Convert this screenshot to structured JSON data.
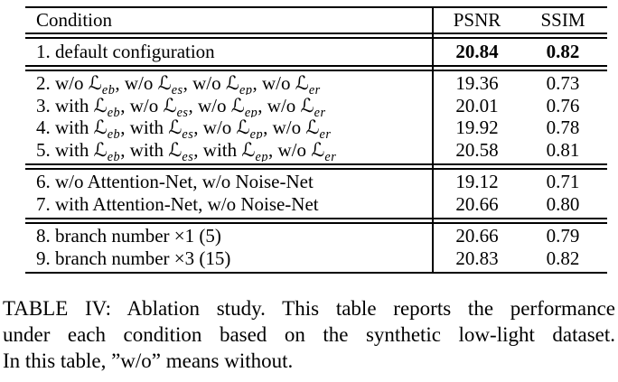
{
  "table": {
    "columns": {
      "condition": "Condition",
      "psnr": "PSNR",
      "ssim": "SSIM"
    },
    "groups": [
      {
        "rows": [
          {
            "condition": [
              {
                "text": "1. default configuration"
              }
            ],
            "psnr": "20.84",
            "ssim": "0.82",
            "bold": true
          }
        ]
      },
      {
        "rows": [
          {
            "condition": [
              {
                "text": "2. w/o "
              },
              {
                "math": "ℒ",
                "sub": "eb"
              },
              {
                "text": ", w/o "
              },
              {
                "math": "ℒ",
                "sub": "es"
              },
              {
                "text": ", w/o "
              },
              {
                "math": "ℒ",
                "sub": "ep"
              },
              {
                "text": ", w/o "
              },
              {
                "math": "ℒ",
                "sub": "er"
              }
            ],
            "psnr": "19.36",
            "ssim": "0.73",
            "bold": false
          },
          {
            "condition": [
              {
                "text": "3. with "
              },
              {
                "math": "ℒ",
                "sub": "eb"
              },
              {
                "text": ", w/o "
              },
              {
                "math": "ℒ",
                "sub": "es"
              },
              {
                "text": ", w/o "
              },
              {
                "math": "ℒ",
                "sub": "ep"
              },
              {
                "text": ", w/o "
              },
              {
                "math": "ℒ",
                "sub": "er"
              }
            ],
            "psnr": "20.01",
            "ssim": "0.76",
            "bold": false
          },
          {
            "condition": [
              {
                "text": "4. with "
              },
              {
                "math": "ℒ",
                "sub": "eb"
              },
              {
                "text": ", with "
              },
              {
                "math": "ℒ",
                "sub": "es"
              },
              {
                "text": ", w/o "
              },
              {
                "math": "ℒ",
                "sub": "ep"
              },
              {
                "text": ", w/o "
              },
              {
                "math": "ℒ",
                "sub": "er"
              }
            ],
            "psnr": "19.92",
            "ssim": "0.78",
            "bold": false
          },
          {
            "condition": [
              {
                "text": "5. with "
              },
              {
                "math": "ℒ",
                "sub": "eb"
              },
              {
                "text": ", with "
              },
              {
                "math": "ℒ",
                "sub": "es"
              },
              {
                "text": ", with "
              },
              {
                "math": "ℒ",
                "sub": "ep"
              },
              {
                "text": ", w/o "
              },
              {
                "math": "ℒ",
                "sub": "er"
              }
            ],
            "psnr": "20.58",
            "ssim": "0.81",
            "bold": false
          }
        ]
      },
      {
        "rows": [
          {
            "condition": [
              {
                "text": "6. w/o Attention-Net, w/o Noise-Net"
              }
            ],
            "psnr": "19.12",
            "ssim": "0.71",
            "bold": false
          },
          {
            "condition": [
              {
                "text": "7. with Attention-Net, w/o Noise-Net"
              }
            ],
            "psnr": "20.66",
            "ssim": "0.80",
            "bold": false
          }
        ]
      },
      {
        "rows": [
          {
            "condition": [
              {
                "text": "8. branch number ×1 (5)"
              }
            ],
            "psnr": "20.66",
            "ssim": "0.79",
            "bold": false
          },
          {
            "condition": [
              {
                "text": "9. branch number ×3 (15)"
              }
            ],
            "psnr": "20.83",
            "ssim": "0.82",
            "bold": false
          }
        ]
      }
    ]
  },
  "caption": {
    "lines": [
      "TABLE IV: Ablation study. This table reports the performance",
      "under each condition based on the synthetic low-light dataset.",
      "In this table, ”w/o” means without."
    ]
  }
}
